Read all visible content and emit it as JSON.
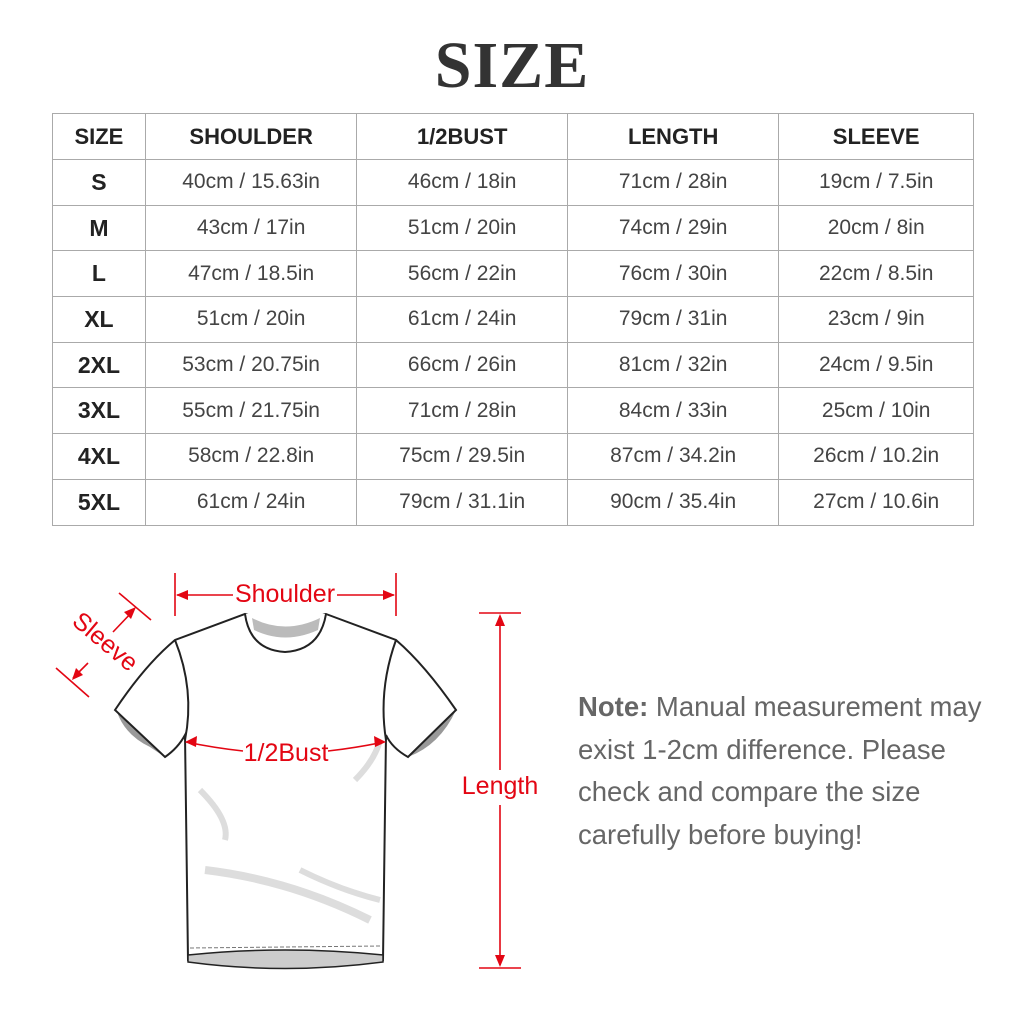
{
  "title": "SIZE",
  "table": {
    "headers": [
      "SIZE",
      "SHOULDER",
      "1/2BUST",
      "LENGTH",
      "SLEEVE"
    ],
    "rows": [
      [
        "S",
        "40cm / 15.63in",
        "46cm / 18in",
        "71cm / 28in",
        "19cm / 7.5in"
      ],
      [
        "M",
        "43cm / 17in",
        "51cm / 20in",
        "74cm / 29in",
        "20cm / 8in"
      ],
      [
        "L",
        "47cm / 18.5in",
        "56cm / 22in",
        "76cm / 30in",
        "22cm / 8.5in"
      ],
      [
        "XL",
        "51cm / 20in",
        "61cm / 24in",
        "79cm / 31in",
        "23cm / 9in"
      ],
      [
        "2XL",
        "53cm / 20.75in",
        "66cm / 26in",
        "81cm / 32in",
        "24cm / 9.5in"
      ],
      [
        "3XL",
        "55cm / 21.75in",
        "71cm / 28in",
        "84cm / 33in",
        "25cm / 10in"
      ],
      [
        "4XL",
        "58cm / 22.8in",
        "75cm / 29.5in",
        "87cm / 34.2in",
        "26cm / 10.2in"
      ],
      [
        "5XL",
        "61cm / 24in",
        "79cm / 31.1in",
        "90cm / 35.4in",
        "27cm / 10.6in"
      ]
    ]
  },
  "diagram": {
    "shoulder": "Shoulder",
    "sleeve": "Sleeve",
    "bust": "1/2Bust",
    "length": "Length",
    "accent_color": "#e30613"
  },
  "note": {
    "label": "Note:",
    "text": "Manual measurement may exist 1-2cm difference. Please check and compare the size carefully before buying!"
  }
}
